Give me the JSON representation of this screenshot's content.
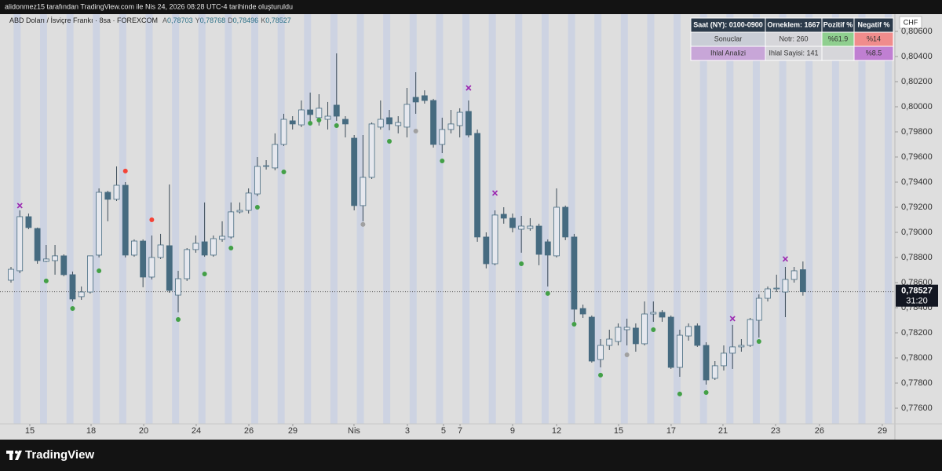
{
  "header": {
    "caption": "alidonmez15 tarafından TradingView.com ile Nis 24, 2026 08:28 UTC-4 tarihinde oluşturuldu",
    "footer": "TradingView"
  },
  "table": {
    "header": [
      "Saat (NY): 0100-0900",
      "Orneklem: 1667",
      "Pozitif %",
      "Negatif %"
    ],
    "rows": [
      [
        "Sonuclar",
        "Notr: 260",
        "%61.9",
        "%14"
      ],
      [
        "Ihlal Analizi",
        "Ihlal Sayisi: 141",
        null,
        "%8.5"
      ]
    ]
  },
  "chart_data": {
    "type": "candlestick",
    "symbol": "ABD Doları / İsviçre Frankı · 8sa · FOREXCOM",
    "ohlc_legend": [
      {
        "key": "A",
        "value": "0,78703"
      },
      {
        "key": "Y",
        "value": "0,78768"
      },
      {
        "key": "D",
        "value": "0,78496"
      },
      {
        "key": "K",
        "value": "0,78527"
      }
    ],
    "currency": "CHF",
    "up_color": "#e6e8ee",
    "down_color": "#466b80",
    "wick_color": "#3c4c58",
    "last_price": {
      "value": 0.78527,
      "label": "0,78527"
    },
    "countdown": "31:20",
    "grid": false,
    "ylim": [
      0.77475,
      0.80725
    ],
    "yticks": [
      {
        "value": 0.806,
        "label": "0,80600"
      },
      {
        "value": 0.804,
        "label": "0,80400"
      },
      {
        "value": 0.802,
        "label": "0,80200"
      },
      {
        "value": 0.8,
        "label": "0,80000"
      },
      {
        "value": 0.798,
        "label": "0,79800"
      },
      {
        "value": 0.796,
        "label": "0,79600"
      },
      {
        "value": 0.794,
        "label": "0,79400"
      },
      {
        "value": 0.792,
        "label": "0,79200"
      },
      {
        "value": 0.79,
        "label": "0,79000"
      },
      {
        "value": 0.788,
        "label": "0,78800"
      },
      {
        "value": 0.786,
        "label": "0,78600"
      },
      {
        "value": 0.784,
        "label": "0,78400"
      },
      {
        "value": 0.782,
        "label": "0,78200"
      },
      {
        "value": 0.78,
        "label": "0,78000"
      },
      {
        "value": 0.778,
        "label": "0,77800"
      },
      {
        "value": 0.776,
        "label": "0,77600"
      }
    ],
    "xlim": [
      -1.25,
      100.45
    ],
    "xticks": [
      {
        "value": 2.14,
        "label": "15"
      },
      {
        "value": 9.1,
        "label": "18"
      },
      {
        "value": 15.08,
        "label": "20"
      },
      {
        "value": 21.05,
        "label": "24"
      },
      {
        "value": 27.03,
        "label": "26"
      },
      {
        "value": 32.02,
        "label": "29"
      },
      {
        "value": 38.98,
        "label": "Nis"
      },
      {
        "value": 45.05,
        "label": "3"
      },
      {
        "value": 49.15,
        "label": "5"
      },
      {
        "value": 51.03,
        "label": "7"
      },
      {
        "value": 57.0,
        "label": "9"
      },
      {
        "value": 62.0,
        "label": "12"
      },
      {
        "value": 69.05,
        "label": "15"
      },
      {
        "value": 75.02,
        "label": "17"
      },
      {
        "value": 80.91,
        "label": "21"
      },
      {
        "value": 86.89,
        "label": "23"
      },
      {
        "value": 91.88,
        "label": "26"
      },
      {
        "value": 99.02,
        "label": "29"
      }
    ],
    "open": [
      0.78619,
      0.78694,
      0.79125,
      0.79031,
      0.78769,
      0.78775,
      0.78813,
      0.78663,
      0.78488,
      0.78525,
      0.78819,
      0.79319,
      0.79263,
      0.79375,
      0.78819,
      0.78931,
      0.78644,
      0.788,
      0.78894,
      0.785,
      0.78631,
      0.78863,
      0.78925,
      0.78819,
      0.78944,
      0.78963,
      0.79163,
      0.79175,
      0.79306,
      0.79525,
      0.79513,
      0.797,
      0.79888,
      0.79856,
      0.79975,
      0.79913,
      0.799,
      0.80013,
      0.799,
      0.7975,
      0.79213,
      0.79438,
      0.79838,
      0.79913,
      0.7985,
      0.79838,
      0.80075,
      0.80088,
      0.8005,
      0.797,
      0.79819,
      0.7985,
      0.79963,
      0.79788,
      0.78963,
      0.7875,
      0.79144,
      0.79113,
      0.79025,
      0.79031,
      0.7905,
      0.78925,
      0.78813,
      0.792,
      0.78963,
      0.78394,
      0.78325,
      0.77988,
      0.781,
      0.78131,
      0.78225,
      0.78238,
      0.78113,
      0.7835,
      0.78363,
      0.78325,
      0.77925,
      0.78175,
      0.78256,
      0.781,
      0.77838,
      0.77938,
      0.78038,
      0.78088,
      0.781,
      0.783,
      0.78475,
      0.7855,
      0.78525,
      0.78625,
      0.78703
    ],
    "high": [
      0.78725,
      0.79175,
      0.7915,
      0.79038,
      0.789,
      0.789,
      0.78825,
      0.78688,
      0.78569,
      0.78813,
      0.7935,
      0.79331,
      0.79525,
      0.794,
      0.78944,
      0.78944,
      0.78975,
      0.78988,
      0.79381,
      0.78694,
      0.78875,
      0.78975,
      0.79238,
      0.78975,
      0.79088,
      0.79238,
      0.79238,
      0.7935,
      0.796,
      0.79575,
      0.79788,
      0.79944,
      0.79925,
      0.8005,
      0.80113,
      0.801,
      0.80038,
      0.80425,
      0.79925,
      0.79775,
      0.79775,
      0.79875,
      0.8005,
      0.79975,
      0.79925,
      0.8015,
      0.80275,
      0.80131,
      0.80063,
      0.79913,
      0.79975,
      0.79988,
      0.8005,
      0.79819,
      0.79,
      0.79175,
      0.792,
      0.7915,
      0.79131,
      0.79113,
      0.79069,
      0.78944,
      0.7935,
      0.79213,
      0.78988,
      0.78425,
      0.78338,
      0.7815,
      0.78225,
      0.78275,
      0.78313,
      0.78275,
      0.7845,
      0.7845,
      0.78381,
      0.78338,
      0.78225,
      0.78275,
      0.78275,
      0.78125,
      0.77975,
      0.781,
      0.78263,
      0.7815,
      0.78319,
      0.78506,
      0.78569,
      0.78663,
      0.78725,
      0.78725,
      0.78768
    ],
    "low": [
      0.786,
      0.78675,
      0.79025,
      0.7875,
      0.78763,
      0.78663,
      0.7865,
      0.7845,
      0.78463,
      0.78513,
      0.788,
      0.79088,
      0.7925,
      0.788,
      0.78806,
      0.78563,
      0.78625,
      0.78788,
      0.78519,
      0.78363,
      0.78613,
      0.78838,
      0.78806,
      0.78806,
      0.78925,
      0.7895,
      0.7915,
      0.7915,
      0.79288,
      0.795,
      0.79494,
      0.79688,
      0.79819,
      0.79838,
      0.79869,
      0.7985,
      0.79819,
      0.79888,
      0.79756,
      0.79175,
      0.79088,
      0.79425,
      0.79819,
      0.79813,
      0.79788,
      0.79756,
      0.79944,
      0.80025,
      0.79675,
      0.79631,
      0.79788,
      0.79756,
      0.79756,
      0.78925,
      0.78713,
      0.78738,
      0.79069,
      0.79,
      0.78838,
      0.79013,
      0.78738,
      0.78569,
      0.788,
      0.78938,
      0.78288,
      0.78319,
      0.77963,
      0.77925,
      0.78063,
      0.781,
      0.781,
      0.7805,
      0.781,
      0.78288,
      0.78288,
      0.77913,
      0.7785,
      0.78138,
      0.78088,
      0.77788,
      0.77825,
      0.779,
      0.77913,
      0.7805,
      0.78088,
      0.78163,
      0.7845,
      0.78525,
      0.78325,
      0.786,
      0.78496
    ],
    "close": [
      0.78706,
      0.79125,
      0.79038,
      0.78775,
      0.78788,
      0.78813,
      0.78663,
      0.78469,
      0.78525,
      0.78813,
      0.79319,
      0.79263,
      0.79375,
      0.78819,
      0.78931,
      0.78644,
      0.788,
      0.789,
      0.78538,
      0.78631,
      0.78863,
      0.78913,
      0.78819,
      0.7895,
      0.78969,
      0.79163,
      0.79175,
      0.79313,
      0.79525,
      0.79531,
      0.797,
      0.799,
      0.79863,
      0.79975,
      0.79938,
      0.79988,
      0.79925,
      0.79925,
      0.79863,
      0.79213,
      0.79438,
      0.79863,
      0.799,
      0.79863,
      0.79875,
      0.80019,
      0.80038,
      0.8005,
      0.797,
      0.79819,
      0.79863,
      0.79956,
      0.79775,
      0.78963,
      0.7875,
      0.79138,
      0.79113,
      0.79038,
      0.7905,
      0.7905,
      0.78825,
      0.78819,
      0.792,
      0.78963,
      0.78388,
      0.7835,
      0.77975,
      0.781,
      0.7815,
      0.78244,
      0.78244,
      0.78113,
      0.7835,
      0.78363,
      0.78325,
      0.77925,
      0.78181,
      0.7825,
      0.781,
      0.77825,
      0.77938,
      0.78038,
      0.78088,
      0.781,
      0.78306,
      0.78475,
      0.7855,
      0.78556,
      0.78625,
      0.78694,
      0.78527
    ],
    "markers": [
      {
        "shape": "dot",
        "color": "#43a047",
        "points": [
          [
            4,
            0.78613
          ],
          [
            7,
            0.78394
          ],
          [
            10,
            0.78694
          ],
          [
            19,
            0.78306
          ],
          [
            22,
            0.78669
          ],
          [
            25,
            0.78875
          ],
          [
            28,
            0.792
          ],
          [
            31,
            0.79481
          ],
          [
            34,
            0.79869
          ],
          [
            35,
            0.79894
          ],
          [
            37,
            0.7985
          ],
          [
            43,
            0.79725
          ],
          [
            49,
            0.79569
          ],
          [
            58,
            0.7875
          ],
          [
            61,
            0.78513
          ],
          [
            64,
            0.78269
          ],
          [
            67,
            0.77863
          ],
          [
            73,
            0.78225
          ],
          [
            76,
            0.77713
          ],
          [
            79,
            0.77725
          ],
          [
            85,
            0.78131
          ]
        ]
      },
      {
        "shape": "dot",
        "color": "#f44336",
        "points": [
          [
            13,
            0.79488
          ],
          [
            16,
            0.791
          ]
        ]
      },
      {
        "shape": "dot",
        "color": "#a0a0a0",
        "points": [
          [
            40,
            0.79063
          ],
          [
            46,
            0.79806
          ],
          [
            70,
            0.78025
          ]
        ]
      },
      {
        "shape": "cross",
        "color": "#9c27b0",
        "points": [
          [
            1,
            0.79213
          ],
          [
            52,
            0.8015
          ],
          [
            55,
            0.79313
          ],
          [
            82,
            0.78313
          ],
          [
            88,
            0.78788
          ]
        ]
      }
    ]
  }
}
